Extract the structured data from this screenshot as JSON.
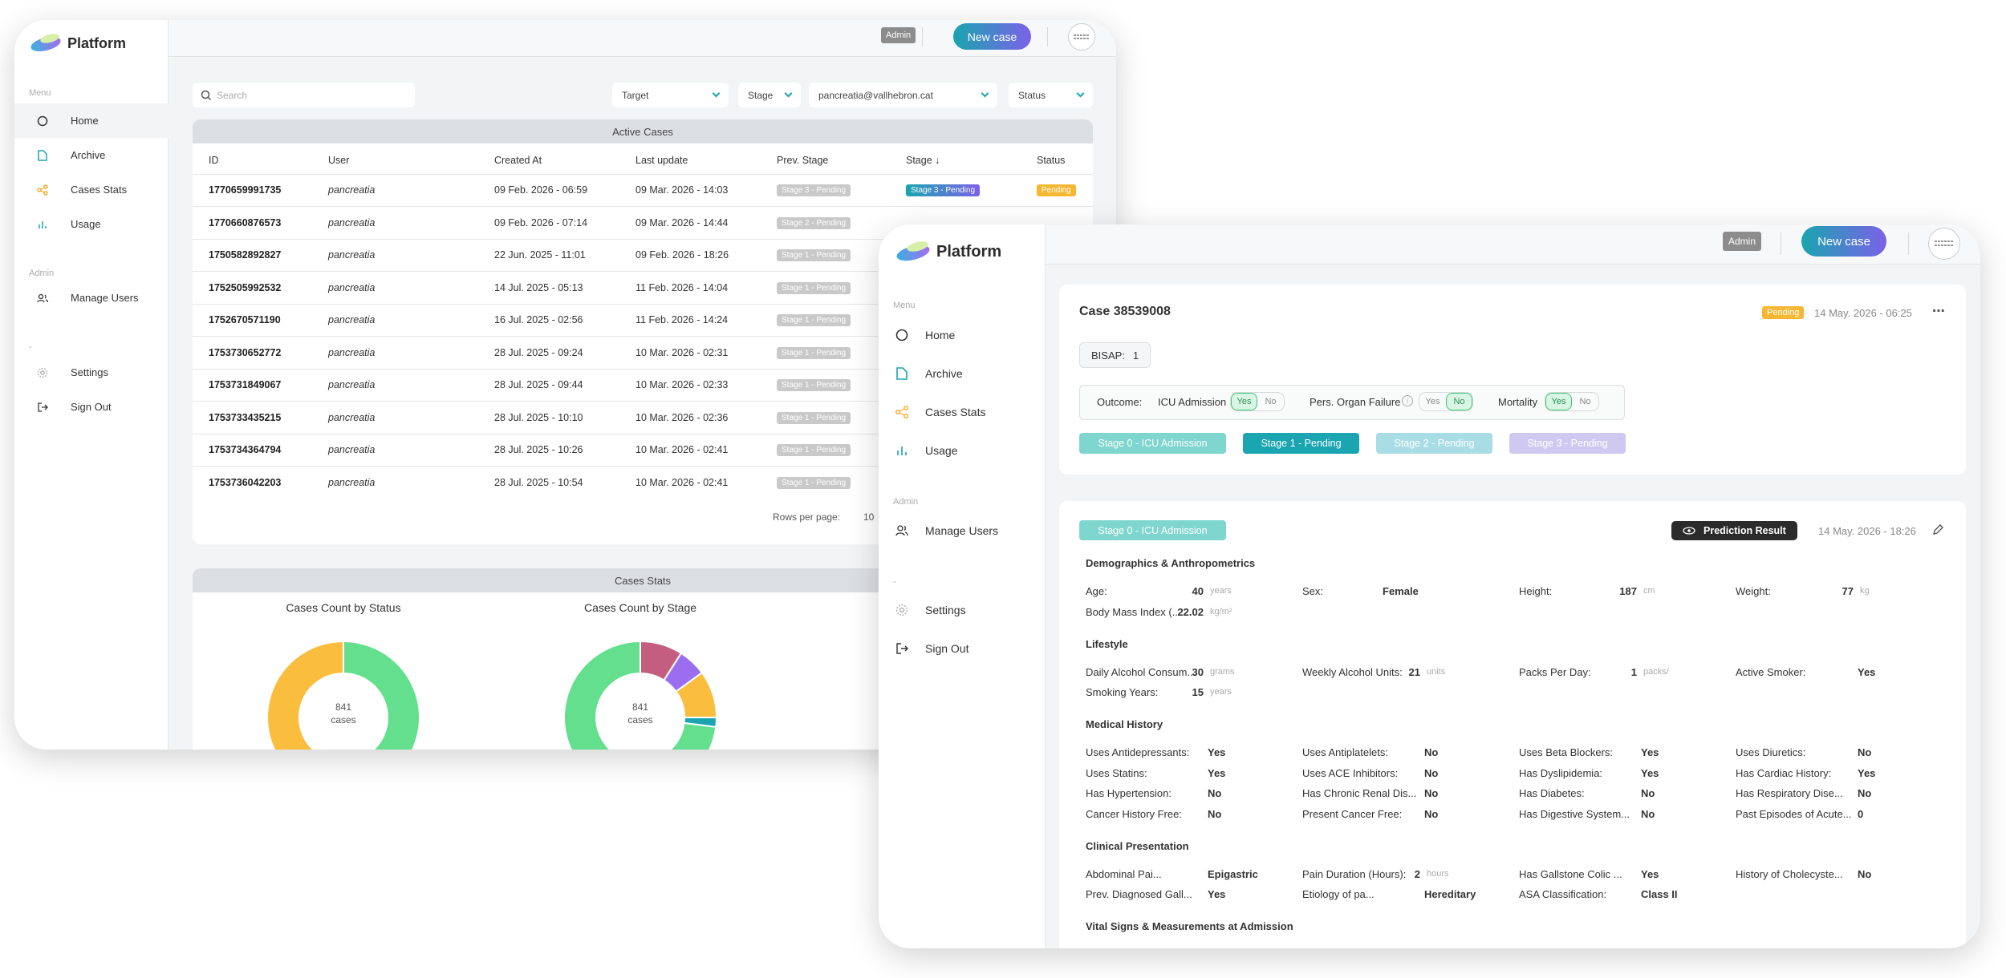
{
  "brand": {
    "name": "Platform"
  },
  "sidebar": {
    "menu_caption": "Menu",
    "admin_caption": "Admin",
    "misc_caption": "-",
    "items": [
      {
        "label": "Home",
        "icon": "circle-icon"
      },
      {
        "label": "Archive",
        "icon": "file-icon"
      },
      {
        "label": "Cases Stats",
        "icon": "share-icon"
      },
      {
        "label": "Usage",
        "icon": "bar-chart-icon"
      }
    ],
    "admin_items": [
      {
        "label": "Manage Users",
        "icon": "users-icon"
      }
    ],
    "bottom_items": [
      {
        "label": "Settings",
        "icon": "gear-icon"
      },
      {
        "label": "Sign Out",
        "icon": "sign-out-icon"
      }
    ]
  },
  "topbar": {
    "admin_badge": "Admin",
    "new_case": "New case"
  },
  "list": {
    "search_placeholder": "Search",
    "filters": {
      "target": "Target",
      "stage": "Stage",
      "user": "pancreatia@vallhebron.cat",
      "status": "Status"
    },
    "active_cases_title": "Active Cases",
    "columns": [
      "ID",
      "User",
      "Created At",
      "Last update",
      "Prev. Stage",
      "Stage",
      "Status"
    ],
    "rows": [
      {
        "id": "1770659991735",
        "user": "pancreatia",
        "created": "09 Feb. 2026 - 06:59",
        "updated": "09 Mar. 2026 - 14:03",
        "prev": "Stage 3 - Pending",
        "stage": "Stage 3 - Pending",
        "status": "Pending"
      },
      {
        "id": "1770660876573",
        "user": "pancreatia",
        "created": "09 Feb. 2026 - 07:14",
        "updated": "09 Mar. 2026 - 14:44",
        "prev": "Stage 2 - Pending",
        "stage": "",
        "status": ""
      },
      {
        "id": "1750582892827",
        "user": "pancreatia",
        "created": "22 Jun. 2025 - 11:01",
        "updated": "09 Feb. 2026 - 18:26",
        "prev": "Stage 1 - Pending",
        "stage": "",
        "status": ""
      },
      {
        "id": "1752505992532",
        "user": "pancreatia",
        "created": "14 Jul. 2025 - 05:13",
        "updated": "11 Feb. 2026 - 14:04",
        "prev": "Stage 1 - Pending",
        "stage": "",
        "status": ""
      },
      {
        "id": "1752670571190",
        "user": "pancreatia",
        "created": "16 Jul. 2025 - 02:56",
        "updated": "11 Feb. 2026 - 14:24",
        "prev": "Stage 1 - Pending",
        "stage": "",
        "status": ""
      },
      {
        "id": "1753730652772",
        "user": "pancreatia",
        "created": "28 Jul. 2025 - 09:24",
        "updated": "10 Mar. 2026 - 02:31",
        "prev": "Stage 1 - Pending",
        "stage": "",
        "status": ""
      },
      {
        "id": "1753731849067",
        "user": "pancreatia",
        "created": "28 Jul. 2025 - 09:44",
        "updated": "10 Mar. 2026 - 02:33",
        "prev": "Stage 1 - Pending",
        "stage": "",
        "status": ""
      },
      {
        "id": "1753733435215",
        "user": "pancreatia",
        "created": "28 Jul. 2025 - 10:10",
        "updated": "10 Mar. 2026 - 02:36",
        "prev": "Stage 1 - Pending",
        "stage": "",
        "status": ""
      },
      {
        "id": "1753734364794",
        "user": "pancreatia",
        "created": "28 Jul. 2025 - 10:26",
        "updated": "10 Mar. 2026 - 02:41",
        "prev": "Stage 1 - Pending",
        "stage": "",
        "status": ""
      },
      {
        "id": "1753736042203",
        "user": "pancreatia",
        "created": "28 Jul. 2025 - 10:54",
        "updated": "10 Mar. 2026 - 02:41",
        "prev": "Stage 1 - Pending",
        "stage": "",
        "status": ""
      }
    ],
    "rows_per_page_label": "Rows per page:",
    "rows_per_page": "10",
    "stats_title": "Cases Stats"
  },
  "chart_data": [
    {
      "type": "pie",
      "title": "Cases Count by Status",
      "center_value": "841",
      "center_label": "cases",
      "slices": [
        {
          "value": 0.5,
          "color": "#63df8d"
        },
        {
          "value": 0.07,
          "color": "#58cf8a"
        },
        {
          "value": 0.43,
          "color": "#fbbd3e"
        }
      ]
    },
    {
      "type": "pie",
      "title": "Cases Count by Stage",
      "center_value": "841",
      "center_label": "cases",
      "slices": [
        {
          "value": 0.09,
          "color": "#c45e81"
        },
        {
          "value": 0.06,
          "color": "#9b6ef0"
        },
        {
          "value": 0.1,
          "color": "#fbbd3e"
        },
        {
          "value": 0.02,
          "color": "#1aa5b0"
        },
        {
          "value": 0.73,
          "color": "#63df8d"
        }
      ]
    }
  ],
  "detail": {
    "case_title": "Case 38539008",
    "status": "Pending",
    "date": "14 May. 2026 - 06:25",
    "bisap_label": "BISAP:",
    "bisap_value": "1",
    "outcome_label": "Outcome:",
    "outcomes": [
      {
        "label": "ICU Admission",
        "yes": "Yes",
        "no": "No",
        "selected": "yes"
      },
      {
        "label": "Pers. Organ Failure",
        "yes": "Yes",
        "no": "No",
        "selected": "no"
      },
      {
        "label": "Mortality",
        "yes": "Yes",
        "no": "No",
        "selected": "yes"
      }
    ],
    "stages": [
      {
        "label": "Stage 0 - ICU Admission",
        "color": "#7fd6cf"
      },
      {
        "label": "Stage 1 - Pending",
        "color": "#1aa5b0"
      },
      {
        "label": "Stage 2 - Pending",
        "color": "#a9dde5"
      },
      {
        "label": "Stage 3 - Pending",
        "color": "#cfc9f2"
      }
    ],
    "section_stage": "Stage 0 - ICU Admission",
    "prediction_btn": "Prediction Result",
    "section_date": "14 May. 2026 - 18:26",
    "groups": [
      {
        "title": "Demographics & Anthropometrics",
        "fields": [
          {
            "label": "Age:",
            "value": "40",
            "unit": "years"
          },
          {
            "label": "Sex:",
            "value": "Female",
            "unit": ""
          },
          {
            "label": "Height:",
            "value": "187",
            "unit": "cm"
          },
          {
            "label": "Weight:",
            "value": "77",
            "unit": "kg"
          },
          {
            "label": "Body Mass Index (...",
            "value": "22.02",
            "unit": "kg/m²"
          }
        ]
      },
      {
        "title": "Lifestyle",
        "fields": [
          {
            "label": "Daily Alcohol Consum...",
            "value": "30",
            "unit": "grams"
          },
          {
            "label": "Weekly Alcohol Units:",
            "value": "21",
            "unit": "units"
          },
          {
            "label": "Packs Per Day:",
            "value": "1",
            "unit": "packs/"
          },
          {
            "label": "Active Smoker:",
            "value": "Yes",
            "unit": ""
          },
          {
            "label": "Smoking Years:",
            "value": "15",
            "unit": "years"
          }
        ]
      },
      {
        "title": "Medical History",
        "fields": [
          {
            "label": "Uses Antidepressants:",
            "value": "Yes",
            "unit": ""
          },
          {
            "label": "Uses Antiplatelets:",
            "value": "No",
            "unit": ""
          },
          {
            "label": "Uses Beta Blockers:",
            "value": "Yes",
            "unit": ""
          },
          {
            "label": "Uses Diuretics:",
            "value": "No",
            "unit": ""
          },
          {
            "label": "Uses Statins:",
            "value": "Yes",
            "unit": ""
          },
          {
            "label": "Uses ACE Inhibitors:",
            "value": "No",
            "unit": ""
          },
          {
            "label": "Has Dyslipidemia:",
            "value": "Yes",
            "unit": ""
          },
          {
            "label": "Has Cardiac History:",
            "value": "Yes",
            "unit": ""
          },
          {
            "label": "Has Hypertension:",
            "value": "No",
            "unit": ""
          },
          {
            "label": "Has Chronic Renal Dis...",
            "value": "No",
            "unit": ""
          },
          {
            "label": "Has Diabetes:",
            "value": "No",
            "unit": ""
          },
          {
            "label": "Has Respiratory Dise...",
            "value": "No",
            "unit": ""
          },
          {
            "label": "Cancer History Free:",
            "value": "No",
            "unit": ""
          },
          {
            "label": "Present Cancer Free:",
            "value": "No",
            "unit": ""
          },
          {
            "label": "Has Digestive System...",
            "value": "No",
            "unit": ""
          },
          {
            "label": "Past Episodes of Acute...",
            "value": "0",
            "unit": ""
          }
        ]
      },
      {
        "title": "Clinical Presentation",
        "fields": [
          {
            "label": "Abdominal Pai...",
            "value": "Epigastric",
            "unit": ""
          },
          {
            "label": "Pain Duration (Hours):",
            "value": "2",
            "unit": "hours"
          },
          {
            "label": "Has Gallstone Colic ...",
            "value": "Yes",
            "unit": ""
          },
          {
            "label": "History of Cholecyste...",
            "value": "No",
            "unit": ""
          },
          {
            "label": "Prev. Diagnosed Gall...",
            "value": "Yes",
            "unit": ""
          },
          {
            "label": "Etiology of pa...",
            "value": "Hereditary",
            "unit": ""
          },
          {
            "label": "ASA Classification:",
            "value": "Class II",
            "unit": ""
          }
        ]
      },
      {
        "title": "Vital Signs & Measurements at Admission",
        "fields": []
      }
    ]
  }
}
